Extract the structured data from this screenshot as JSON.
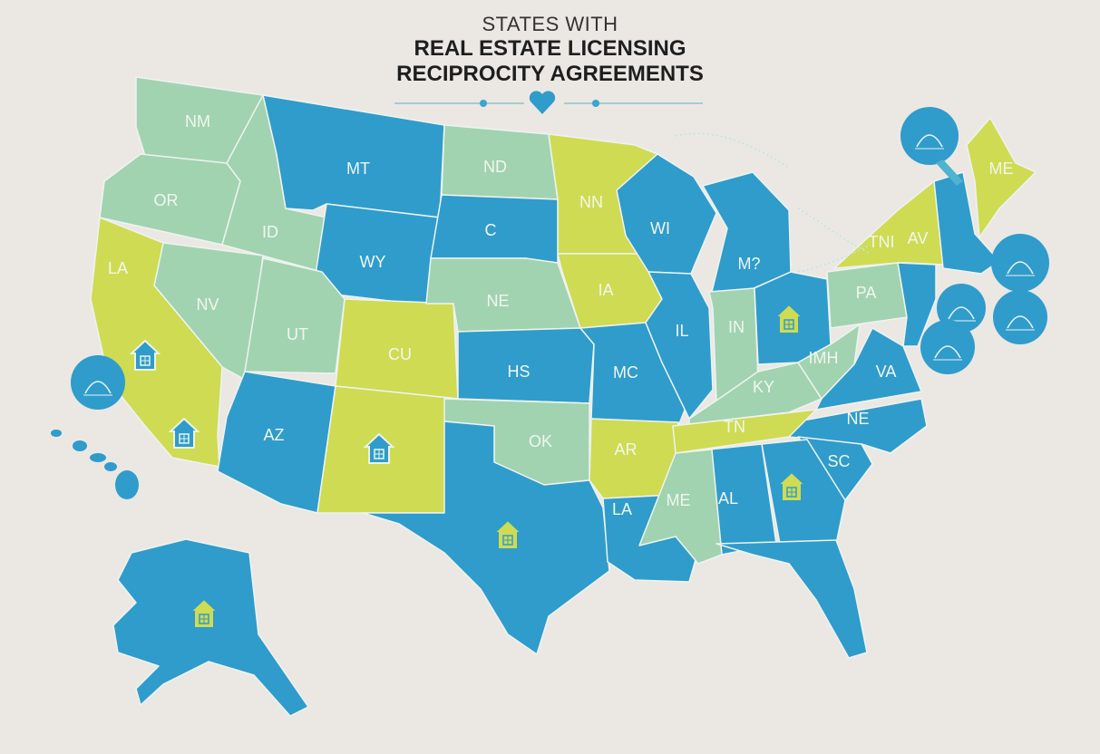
{
  "title": {
    "line1": "STATES WITH",
    "line2": "REAL ESTATE LICENSING",
    "line3": "RECIPROCITY AGREEMENTS",
    "divider_icon": "heart-icon"
  },
  "colors": {
    "background": "#ebe8e3",
    "blue": "#2f9ccb",
    "lime": "#cfdb52",
    "mint": "#a1d3b0"
  },
  "state_labels": {
    "wa": "NM",
    "or": "OR",
    "id": "ID",
    "mt": "MT",
    "nd": "ND",
    "mn": "NN",
    "wy": "WY",
    "sd": "C",
    "nv": "NV",
    "ca": "LA",
    "ut": "UT",
    "co": "CU",
    "ne": "NE",
    "ia": "IA",
    "ks": "HS",
    "az": "AZ",
    "ok": "OK",
    "mo": "MC",
    "ar": "AR",
    "la": "LA",
    "wi": "WI",
    "il": "IL",
    "mi": "M?",
    "in": "IN",
    "ky": "KY",
    "wv": "IMH",
    "pa": "PA",
    "ny_a": "TNI",
    "ny_b": "AV",
    "va": "VA",
    "nc": "NE",
    "tn": "TN",
    "sc": "SC",
    "al": "AL",
    "ms": "ME",
    "me": "ME"
  },
  "icons": {
    "house": "house-icon",
    "badge": "info-circle-icon"
  }
}
